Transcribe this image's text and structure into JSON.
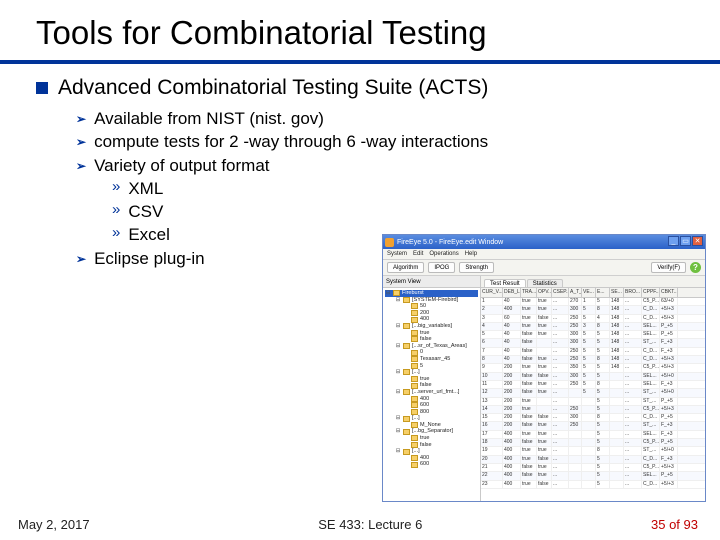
{
  "title": "Tools for Combinatorial Testing",
  "colors": {
    "accent": "#003399",
    "page_number": "#c00000"
  },
  "bullets": [
    {
      "text": "Advanced Combinatorial Testing Suite (ACTS)",
      "subs": [
        {
          "text": "Available from NIST (nist. gov)"
        },
        {
          "text": "compute tests for 2 -way through 6 -way interactions"
        },
        {
          "text": "Variety of output format",
          "subs": [
            "XML",
            "CSV",
            "Excel"
          ]
        },
        {
          "text": "Eclipse plug-in"
        }
      ]
    }
  ],
  "footer": {
    "date": "May 2, 2017",
    "center": "SE 433: Lecture 6",
    "page": "35 of 93"
  },
  "screenshot": {
    "window_title": "FireEye 5.0 - FireEye.edit Window",
    "menubar": [
      "System",
      "Edit",
      "Operations",
      "Help"
    ],
    "toolbar": [
      "Algorithm",
      "IPOG",
      "Strength",
      "Verify(F)"
    ],
    "tree": {
      "header": "System View",
      "nodes": [
        {
          "indent": 0,
          "toggle": "⊟",
          "label": "Fireburst",
          "sel": true
        },
        {
          "indent": 1,
          "toggle": "⊟",
          "label": "[SYSTEM-Firebird]"
        },
        {
          "indent": 2,
          "toggle": "",
          "label": "50"
        },
        {
          "indent": 2,
          "toggle": "",
          "label": "200"
        },
        {
          "indent": 2,
          "toggle": "",
          "label": "400"
        },
        {
          "indent": 1,
          "toggle": "⊟",
          "label": "[...big_variables]"
        },
        {
          "indent": 2,
          "toggle": "",
          "label": "true"
        },
        {
          "indent": 2,
          "toggle": "",
          "label": "false"
        },
        {
          "indent": 1,
          "toggle": "⊟",
          "label": "[...sr_of_Texas_Areas]"
        },
        {
          "indent": 2,
          "toggle": "",
          "label": "0"
        },
        {
          "indent": 2,
          "toggle": "",
          "label": "Texasarr_45"
        },
        {
          "indent": 2,
          "toggle": "",
          "label": "5"
        },
        {
          "indent": 1,
          "toggle": "⊟",
          "label": "[...]"
        },
        {
          "indent": 2,
          "toggle": "",
          "label": "true"
        },
        {
          "indent": 2,
          "toggle": "",
          "label": "false"
        },
        {
          "indent": 1,
          "toggle": "⊟",
          "label": "[...server_url_fmt...]"
        },
        {
          "indent": 2,
          "toggle": "",
          "label": "400"
        },
        {
          "indent": 2,
          "toggle": "",
          "label": "600"
        },
        {
          "indent": 2,
          "toggle": "",
          "label": "800"
        },
        {
          "indent": 1,
          "toggle": "⊟",
          "label": "[...]"
        },
        {
          "indent": 2,
          "toggle": "",
          "label": "M_None"
        },
        {
          "indent": 1,
          "toggle": "⊟",
          "label": "[...bg_Separator]"
        },
        {
          "indent": 2,
          "toggle": "",
          "label": "true"
        },
        {
          "indent": 2,
          "toggle": "",
          "label": "false"
        },
        {
          "indent": 1,
          "toggle": "⊟",
          "label": "[...]"
        },
        {
          "indent": 2,
          "toggle": "",
          "label": "400"
        },
        {
          "indent": 2,
          "toggle": "",
          "label": "600"
        }
      ]
    },
    "table": {
      "tabs": [
        "Test Result",
        "Statistics"
      ],
      "columns": [
        "CUR_V...",
        "DEB_L...",
        "TRA...",
        "OPV...",
        "CSEP...",
        "A_T_I...",
        "VE...",
        "E...",
        "SE...",
        "BRO...",
        "CPPF...",
        "CBKT..."
      ],
      "col_classes": [
        "colA",
        "colB",
        "colC",
        "colD",
        "colE",
        "colF",
        "colG",
        "colH",
        "colI",
        "colJ",
        "colK",
        "colL"
      ],
      "rows": [
        [
          "1",
          "40",
          "true",
          "true",
          "...",
          "270",
          "1",
          "5",
          "148",
          "...",
          "C5_P...",
          "63/+0"
        ],
        [
          "2",
          "400",
          "true",
          "true",
          "...",
          "300",
          "5",
          "8",
          "148",
          "...",
          "C_D...",
          "+5/+3"
        ],
        [
          "3",
          "60",
          "true",
          "false",
          "...",
          "250",
          "5",
          "4",
          "148",
          "...",
          "C_D...",
          "+5/+3"
        ],
        [
          "4",
          "40",
          "true",
          "true",
          "...",
          "250",
          "3",
          "8",
          "148",
          "...",
          "SEL...",
          "P_+5"
        ],
        [
          "5",
          "40",
          "false",
          "true",
          "...",
          "300",
          "5",
          "5",
          "148",
          "...",
          "SEL...",
          "P_+5"
        ],
        [
          "6",
          "40",
          "false",
          "",
          "...",
          "300",
          "5",
          "5",
          "148",
          "...",
          "ST_...",
          "F_+3"
        ],
        [
          "7",
          "40",
          "false",
          "",
          "...",
          "250",
          "5",
          "5",
          "148",
          "...",
          "C_D...",
          "F_+3"
        ],
        [
          "8",
          "40",
          "false",
          "true",
          "...",
          "250",
          "5",
          "8",
          "148",
          "...",
          "C_D...",
          "+5/+3"
        ],
        [
          "9",
          "200",
          "true",
          "true",
          "...",
          "350",
          "5",
          "5",
          "148",
          "...",
          "C5_P...",
          "+5/+3"
        ],
        [
          "10",
          "200",
          "false",
          "false",
          "...",
          "300",
          "5",
          "5",
          "",
          "...",
          "SEL...",
          "+5/+0"
        ],
        [
          "11",
          "200",
          "false",
          "true",
          "...",
          "250",
          "5",
          "8",
          "",
          "...",
          "SEL...",
          "F_+3"
        ],
        [
          "12",
          "200",
          "false",
          "true",
          "...",
          "",
          "5",
          "5",
          "",
          "...",
          "ST_...",
          "+5/+0"
        ],
        [
          "13",
          "200",
          "true",
          "",
          "...",
          "",
          "",
          "5",
          "",
          "...",
          "ST_...",
          "P_+5"
        ],
        [
          "14",
          "200",
          "true",
          "",
          "...",
          "250",
          "",
          "5",
          "",
          "...",
          "C5_P...",
          "+5/+3"
        ],
        [
          "15",
          "200",
          "false",
          "false",
          "...",
          "300",
          "",
          "8",
          "",
          "...",
          "C_D...",
          "P_+5"
        ],
        [
          "16",
          "200",
          "false",
          "true",
          "...",
          "250",
          "",
          "5",
          "",
          "...",
          "ST_...",
          "F_+3"
        ],
        [
          "17",
          "400",
          "true",
          "true",
          "...",
          "",
          "",
          "5",
          "",
          "...",
          "SEL...",
          "F_+3"
        ],
        [
          "18",
          "400",
          "false",
          "true",
          "...",
          "",
          "",
          "5",
          "",
          "...",
          "C5_P...",
          "P_+5"
        ],
        [
          "19",
          "400",
          "true",
          "true",
          "...",
          "",
          "",
          "8",
          "",
          "...",
          "ST_...",
          "+5/+0"
        ],
        [
          "20",
          "400",
          "true",
          "false",
          "...",
          "",
          "",
          "5",
          "",
          "...",
          "C_D...",
          "F_+3"
        ],
        [
          "21",
          "400",
          "false",
          "true",
          "...",
          "",
          "",
          "5",
          "",
          "...",
          "C5_P...",
          "+5/+3"
        ],
        [
          "22",
          "400",
          "false",
          "true",
          "...",
          "",
          "",
          "5",
          "",
          "...",
          "SEL...",
          "P_+5"
        ],
        [
          "23",
          "400",
          "true",
          "false",
          "...",
          "",
          "",
          "5",
          "",
          "...",
          "C_D...",
          "+5/+3"
        ]
      ]
    }
  }
}
